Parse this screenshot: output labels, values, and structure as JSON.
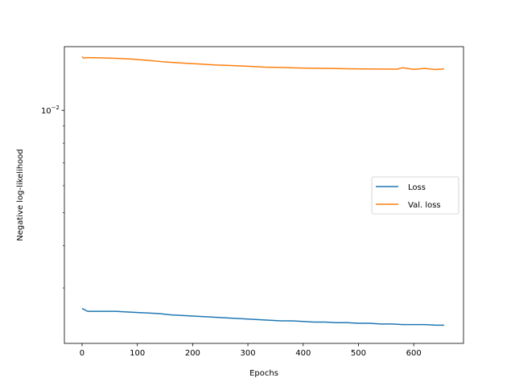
{
  "chart_data": {
    "type": "line",
    "title": "",
    "xlabel": "Epochs",
    "ylabel": "Negative log-likelihood",
    "xlim": [
      -32,
      690
    ],
    "xticks": [
      0,
      100,
      200,
      300,
      400,
      500,
      600
    ],
    "yscale": "log",
    "ylim": [
      0.00206,
      0.0154
    ],
    "ytick_major": [
      {
        "value": 0.01,
        "base": "10",
        "exp": "−2"
      }
    ],
    "ytick_minor": [
      0.003,
      0.004,
      0.005,
      0.006,
      0.007,
      0.008,
      0.009
    ],
    "grid": false,
    "legend_position": "center-right",
    "series": [
      {
        "name": "Loss",
        "color": "#1f77b4",
        "x": [
          0,
          10,
          20,
          40,
          60,
          80,
          100,
          120,
          140,
          160,
          180,
          200,
          220,
          240,
          260,
          280,
          300,
          320,
          340,
          360,
          380,
          400,
          420,
          440,
          460,
          480,
          500,
          520,
          540,
          560,
          580,
          600,
          620,
          640,
          655
        ],
        "y": [
          0.00261,
          0.00256,
          0.00256,
          0.00256,
          0.00256,
          0.00255,
          0.00254,
          0.00253,
          0.00252,
          0.0025,
          0.00249,
          0.00248,
          0.00247,
          0.00246,
          0.00245,
          0.00244,
          0.00243,
          0.00242,
          0.00241,
          0.0024,
          0.0024,
          0.00239,
          0.00238,
          0.00238,
          0.00237,
          0.00237,
          0.00236,
          0.00236,
          0.00235,
          0.00235,
          0.00234,
          0.00234,
          0.00234,
          0.00233,
          0.00233
        ]
      },
      {
        "name": "Val. loss",
        "color": "#ff7f0e",
        "x": [
          0,
          3,
          10,
          30,
          60,
          90,
          120,
          150,
          180,
          210,
          240,
          270,
          300,
          330,
          360,
          390,
          420,
          450,
          480,
          510,
          540,
          570,
          580,
          600,
          620,
          640,
          655
        ],
        "y": [
          0.0144,
          0.01425,
          0.0143,
          0.01428,
          0.01423,
          0.01415,
          0.01403,
          0.01388,
          0.01378,
          0.0137,
          0.0136,
          0.01355,
          0.01348,
          0.0134,
          0.01337,
          0.01333,
          0.0133,
          0.01328,
          0.01326,
          0.01324,
          0.01323,
          0.01322,
          0.01335,
          0.0132,
          0.01328,
          0.01318,
          0.01325
        ]
      }
    ]
  }
}
